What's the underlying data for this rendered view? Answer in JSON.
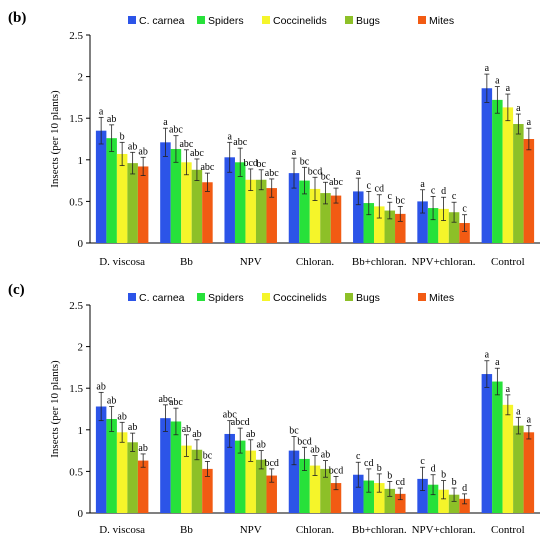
{
  "colors": {
    "C. carnea": "#2c54e8",
    "Spiders": "#27e13a",
    "Coccinelids": "#f5f52a",
    "Bugs": "#8dc028",
    "Mites": "#f25b13"
  },
  "chart_data": [
    {
      "type": "bar",
      "panel_label": "(b)",
      "title": "",
      "xlabel": "",
      "ylabel": "Insects (per 10 plants)",
      "ylim": [
        0,
        2.5
      ],
      "yticks": [
        0,
        0.5,
        1,
        1.5,
        2,
        2.5
      ],
      "grid": false,
      "legend": "top",
      "error_bars": true,
      "categories": [
        "D. viscosa",
        "Bb",
        "NPV",
        "Chloran.",
        "Bb+chloran.",
        "NPV+chloran.",
        "Control"
      ],
      "series": [
        {
          "name": "C. carnea",
          "values": [
            1.35,
            1.21,
            1.03,
            0.84,
            0.62,
            0.5,
            1.86
          ],
          "errors": [
            0.16,
            0.17,
            0.18,
            0.18,
            0.16,
            0.14,
            0.17
          ],
          "letters": [
            "a",
            "a",
            "a",
            "a",
            "a",
            "a",
            "a"
          ]
        },
        {
          "name": "Spiders",
          "values": [
            1.26,
            1.13,
            0.97,
            0.75,
            0.48,
            0.42,
            1.72
          ],
          "errors": [
            0.16,
            0.16,
            0.17,
            0.16,
            0.14,
            0.14,
            0.16
          ],
          "letters": [
            "ab",
            "abc",
            "abc",
            "bc",
            "c",
            "c",
            "a"
          ]
        },
        {
          "name": "Coccinelids",
          "values": [
            1.07,
            0.97,
            0.76,
            0.65,
            0.44,
            0.41,
            1.63
          ],
          "errors": [
            0.14,
            0.15,
            0.13,
            0.14,
            0.14,
            0.14,
            0.16
          ],
          "letters": [
            "b",
            "abc",
            "bcd",
            "bcd",
            "cd",
            "d",
            "a"
          ]
        },
        {
          "name": "Bugs",
          "values": [
            0.96,
            0.88,
            0.76,
            0.6,
            0.39,
            0.37,
            1.43
          ],
          "errors": [
            0.13,
            0.13,
            0.12,
            0.13,
            0.1,
            0.12,
            0.12
          ],
          "letters": [
            "ab",
            "abc",
            "bc",
            "bc",
            "c",
            "c",
            "a"
          ]
        },
        {
          "name": "Mites",
          "values": [
            0.92,
            0.73,
            0.66,
            0.57,
            0.35,
            0.24,
            1.25
          ],
          "errors": [
            0.11,
            0.11,
            0.11,
            0.09,
            0.09,
            0.1,
            0.13
          ],
          "letters": [
            "ab",
            "abc",
            "abc",
            "abc",
            "bc",
            "c",
            "a"
          ]
        }
      ]
    },
    {
      "type": "bar",
      "panel_label": "(c)",
      "title": "",
      "xlabel": "",
      "ylabel": "Insects (per 10 plants)",
      "ylim": [
        0,
        2.5
      ],
      "yticks": [
        0,
        0.5,
        1,
        1.5,
        2,
        2.5
      ],
      "grid": false,
      "legend": "top",
      "error_bars": true,
      "categories": [
        "D. viscosa",
        "Bb",
        "NPV",
        "Chloran.",
        "Bb+chloran.",
        "NPV+chloran.",
        "Control"
      ],
      "series": [
        {
          "name": "C. carnea",
          "values": [
            1.28,
            1.14,
            0.95,
            0.75,
            0.46,
            0.41,
            1.67
          ],
          "errors": [
            0.17,
            0.16,
            0.16,
            0.17,
            0.15,
            0.14,
            0.16
          ],
          "letters": [
            "ab",
            "abc",
            "abc",
            "bc",
            "c",
            "c",
            "a"
          ]
        },
        {
          "name": "Spiders",
          "values": [
            1.13,
            1.1,
            0.87,
            0.65,
            0.39,
            0.34,
            1.58
          ],
          "errors": [
            0.15,
            0.16,
            0.15,
            0.14,
            0.14,
            0.12,
            0.16
          ],
          "letters": [
            "ab",
            "abc",
            "abcd",
            "bcd",
            "cd",
            "d",
            "a"
          ]
        },
        {
          "name": "Coccinelids",
          "values": [
            0.97,
            0.81,
            0.75,
            0.57,
            0.36,
            0.28,
            1.3
          ],
          "errors": [
            0.12,
            0.13,
            0.13,
            0.12,
            0.11,
            0.11,
            0.12
          ],
          "letters": [
            "ab",
            "ab",
            "ab",
            "ab",
            "b",
            "b",
            "a"
          ]
        },
        {
          "name": "Bugs",
          "values": [
            0.85,
            0.76,
            0.64,
            0.53,
            0.29,
            0.22,
            1.05
          ],
          "errors": [
            0.11,
            0.12,
            0.11,
            0.1,
            0.09,
            0.08,
            0.1
          ],
          "letters": [
            "ab",
            "ab",
            "ab",
            "ab",
            "b",
            "b",
            "a"
          ]
        },
        {
          "name": "Mites",
          "values": [
            0.63,
            0.53,
            0.45,
            0.36,
            0.23,
            0.17,
            0.97
          ],
          "errors": [
            0.08,
            0.09,
            0.08,
            0.08,
            0.07,
            0.06,
            0.08
          ],
          "letters": [
            "ab",
            "bc",
            "bcd",
            "bcd",
            "cd",
            "d",
            "a"
          ]
        }
      ]
    }
  ]
}
